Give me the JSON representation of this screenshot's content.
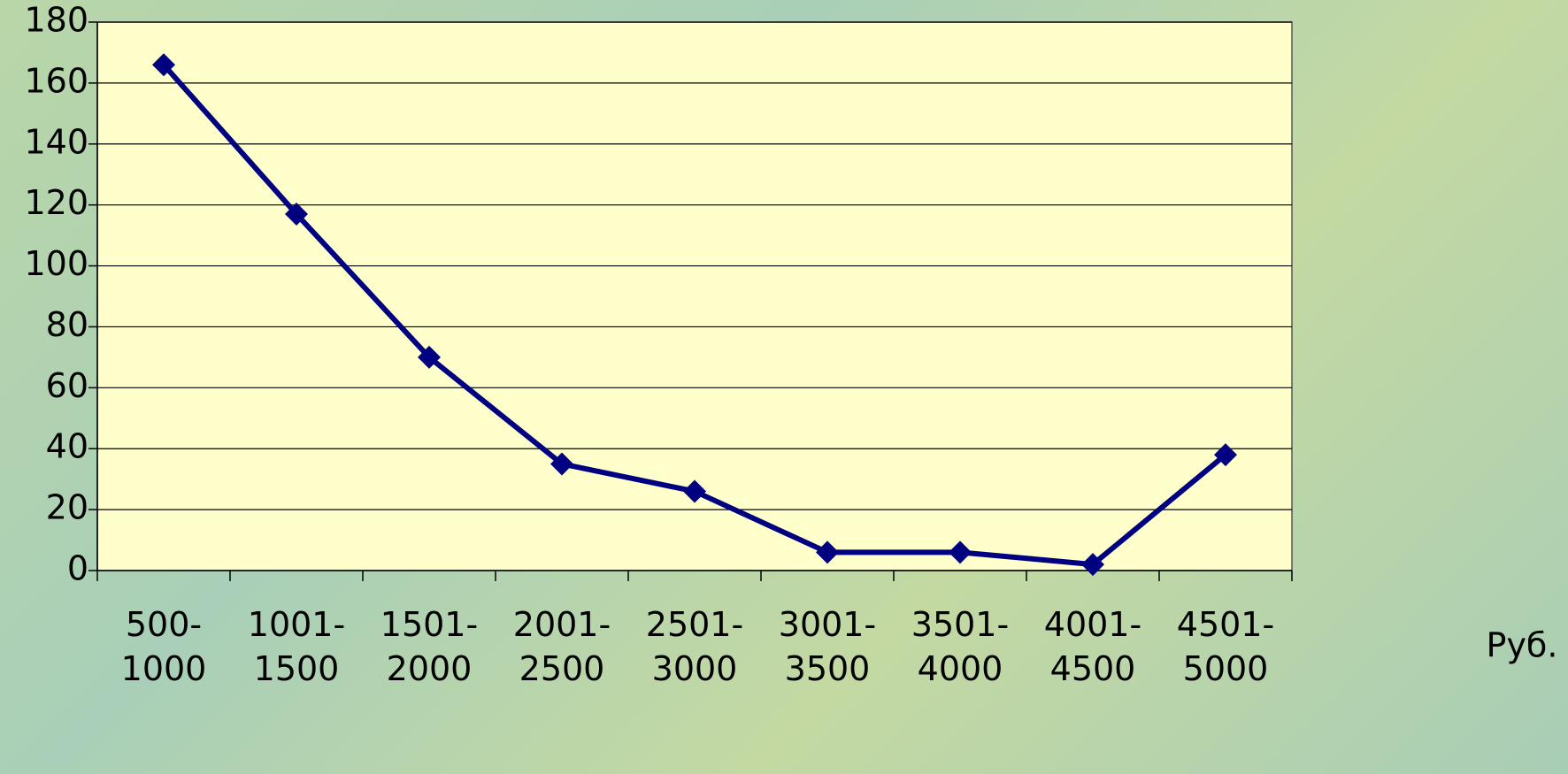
{
  "chart_data": {
    "type": "line",
    "categories": [
      "500-1000",
      "1001-1500",
      "1501-2000",
      "2001-2500",
      "2501-3000",
      "3001-3500",
      "3501-4000",
      "4001-4500",
      "4501-5000"
    ],
    "values": [
      166,
      117,
      70,
      35,
      26,
      6,
      6,
      2,
      38
    ],
    "color": "#000080",
    "x_label": "Руб.",
    "ylim": [
      0,
      180
    ],
    "yticks": [
      0,
      20,
      40,
      60,
      80,
      100,
      120,
      140,
      160,
      180
    ],
    "grid": true
  }
}
